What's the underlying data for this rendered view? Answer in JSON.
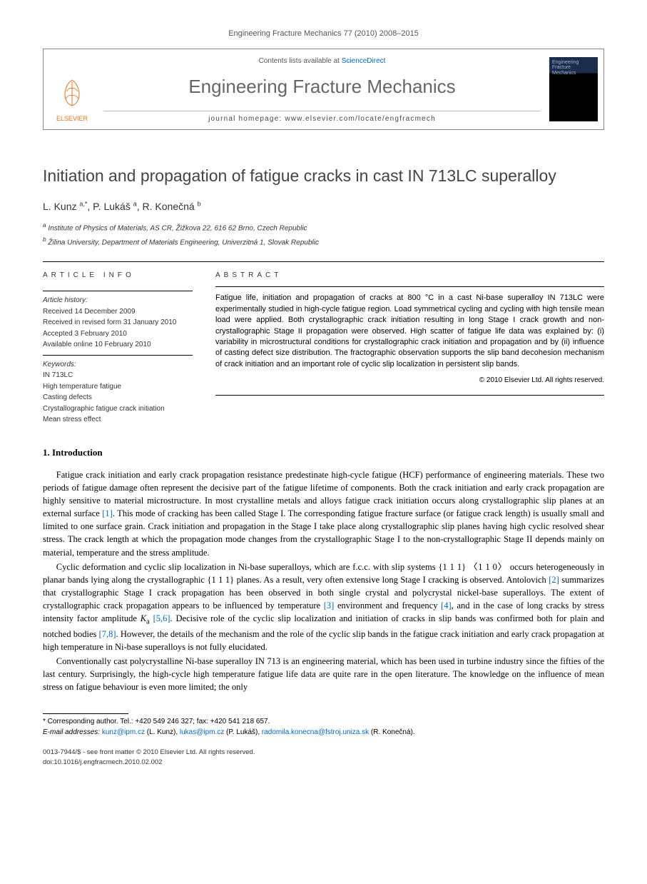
{
  "page_meta": "Engineering Fracture Mechanics 77 (2010) 2008–2015",
  "masthead": {
    "contents_prefix": "Contents lists available at ",
    "contents_link": "ScienceDirect",
    "journal_title": "Engineering Fracture Mechanics",
    "homepage_label": "journal homepage: www.elsevier.com/locate/engfracmech",
    "publisher": "ELSEVIER",
    "cover_title": "Engineering Fracture Mechanics"
  },
  "paper": {
    "title": "Initiation and propagation of fatigue cracks in cast IN 713LC superalloy",
    "authors_html": "L. Kunz <sup>a,*</sup>, P. Lukáš <sup>a</sup>, R. Konečná <sup>b</sup>",
    "affiliations": [
      "a Institute of Physics of Materials, AS CR, Žižkova 22, 616 62 Brno, Czech Republic",
      "b Žilina University, Department of Materials Engineering, Univerzitná 1, Slovak Republic"
    ]
  },
  "article_info": {
    "heading": "ARTICLE INFO",
    "history_label": "Article history:",
    "history": [
      "Received 14 December 2009",
      "Received in revised form 31 January 2010",
      "Accepted 3 February 2010",
      "Available online 10 February 2010"
    ],
    "keywords_label": "Keywords:",
    "keywords": [
      "IN 713LC",
      "High temperature fatigue",
      "Casting defects",
      "Crystallographic fatigue crack initiation",
      "Mean stress effect"
    ]
  },
  "abstract": {
    "heading": "ABSTRACT",
    "body": "Fatigue life, initiation and propagation of cracks at 800 °C in a cast Ni-base superalloy IN 713LC were experimentally studied in high-cycle fatigue region. Load symmetrical cycling and cycling with high tensile mean load were applied. Both crystallographic crack initiation resulting in long Stage I crack growth and non-crystallographic Stage II propagation were observed. High scatter of fatigue life data was explained by: (i) variability in microstructural conditions for crystallographic crack initiation and propagation and by (ii) influence of casting defect size distribution. The fractographic observation supports the slip band decohesion mechanism of crack initiation and an important role of cyclic slip localization in persistent slip bands.",
    "copyright": "© 2010 Elsevier Ltd. All rights reserved."
  },
  "sections": {
    "intro_heading": "1. Introduction",
    "intro_paras": [
      "Fatigue crack initiation and early crack propagation resistance predestinate high-cycle fatigue (HCF) performance of engineering materials. These two periods of fatigue damage often represent the decisive part of the fatigue lifetime of components. Both the crack initiation and early crack propagation are highly sensitive to material microstructure. In most crystalline metals and alloys fatigue crack initiation occurs along crystallographic slip planes at an external surface [1]. This mode of cracking has been called Stage I. The corresponding fatigue fracture surface (or fatigue crack length) is usually small and limited to one surface grain. Crack initiation and propagation in the Stage I take place along crystallographic slip planes having high cyclic resolved shear stress. The crack length at which the propagation mode changes from the crystallographic Stage I to the non-crystallographic Stage II depends mainly on material, temperature and the stress amplitude.",
      "Cyclic deformation and cyclic slip localization in Ni-base superalloys, which are f.c.c. with slip systems {1 1 1} 〈1 1 0〉 occurs heterogeneously in planar bands lying along the crystallographic {1 1 1} planes. As a result, very often extensive long Stage I cracking is observed. Antolovich [2] summarizes that crystallographic Stage I crack propagation has been observed in both single crystal and polycrystal nickel-base superalloys. The extent of crystallographic crack propagation appears to be influenced by temperature [3] environment and frequency [4], and in the case of long cracks by stress intensity factor amplitude Ka [5,6]. Decisive role of the cyclic slip localization and initiation of cracks in slip bands was confirmed both for plain and notched bodies [7,8]. However, the details of the mechanism and the role of the cyclic slip bands in the fatigue crack initiation and early crack propagation at high temperature in Ni-base superalloys is not fully elucidated.",
      "Conventionally cast polycrystalline Ni-base superalloy IN 713 is an engineering material, which has been used in turbine industry since the fifties of the last century. Surprisingly, the high-cycle high temperature fatigue life data are quite rare in the open literature. The knowledge on the influence of mean stress on fatigue behaviour is even more limited; the only"
    ]
  },
  "footnotes": {
    "corresponding": "* Corresponding author. Tel.: +420 549 246 327; fax: +420 541 218 657.",
    "emails_label": "E-mail addresses: ",
    "emails": [
      {
        "addr": "kunz@ipm.cz",
        "who": "(L. Kunz)"
      },
      {
        "addr": "lukas@ipm.cz",
        "who": "(P. Lukáš)"
      },
      {
        "addr": "radomila.konecna@fstroj.uniza.sk",
        "who": "(R. Konečná)"
      }
    ]
  },
  "bottom": {
    "issn_line": "0013-7944/$ - see front matter © 2010 Elsevier Ltd. All rights reserved.",
    "doi_line": "doi:10.1016/j.engfracmech.2010.02.002"
  },
  "refs": [
    "1",
    "2",
    "3",
    "4",
    "5,6",
    "7,8"
  ]
}
